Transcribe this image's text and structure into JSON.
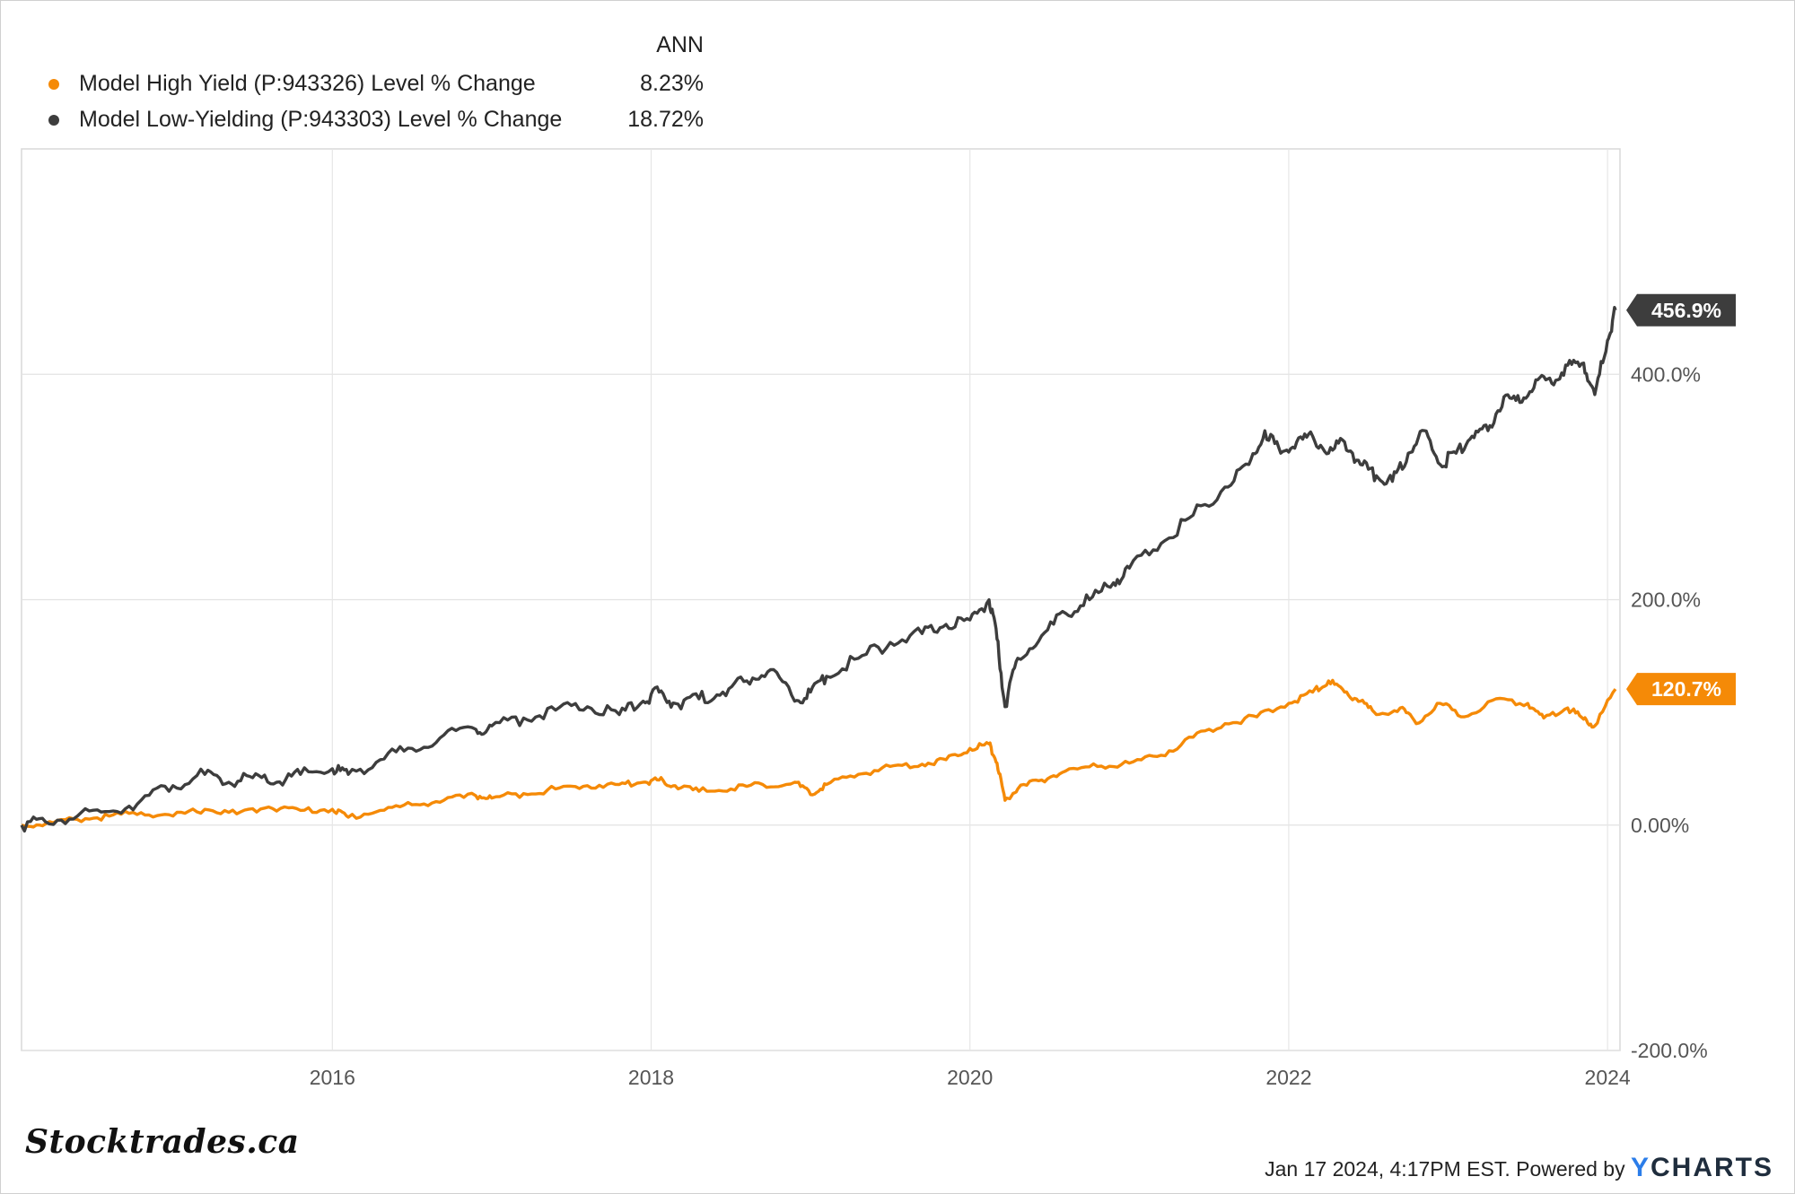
{
  "legend": {
    "column_header": "ANN",
    "items": [
      {
        "name": "Model High Yield (P:943326) Level % Change",
        "value": "8.23%",
        "color": "#f58a07"
      },
      {
        "name": "Model Low-Yielding (P:943303) Level % Change",
        "value": "18.72%",
        "color": "#3d3d3d"
      }
    ]
  },
  "chart_data": {
    "type": "line",
    "title": "",
    "xlabel": "",
    "ylabel": "",
    "x_ticks": [
      "2016",
      "2018",
      "2020",
      "2022",
      "2024"
    ],
    "y_ticks": [
      "400.0%",
      "200.0%",
      "0.00%",
      "-200.0%"
    ],
    "y_tick_values": [
      400,
      200,
      0,
      -200
    ],
    "xlim": [
      2014.05,
      2024.05
    ],
    "ylim": [
      -200,
      600
    ],
    "grid": true,
    "series": [
      {
        "name": "Model High Yield (P:943326) Level % Change",
        "color": "#f58a07",
        "end_label": "120.7%",
        "points": [
          [
            2014.05,
            0
          ],
          [
            2014.2,
            1
          ],
          [
            2014.4,
            5
          ],
          [
            2014.6,
            8
          ],
          [
            2014.8,
            11
          ],
          [
            2015.0,
            8
          ],
          [
            2015.2,
            14
          ],
          [
            2015.4,
            10
          ],
          [
            2015.6,
            16
          ],
          [
            2015.8,
            13
          ],
          [
            2016.0,
            14
          ],
          [
            2016.1,
            7
          ],
          [
            2016.3,
            13
          ],
          [
            2016.5,
            18
          ],
          [
            2016.7,
            22
          ],
          [
            2016.9,
            26
          ],
          [
            2017.0,
            24
          ],
          [
            2017.2,
            28
          ],
          [
            2017.4,
            32
          ],
          [
            2017.6,
            35
          ],
          [
            2017.8,
            36
          ],
          [
            2017.95,
            38
          ],
          [
            2018.05,
            40
          ],
          [
            2018.15,
            35
          ],
          [
            2018.3,
            30
          ],
          [
            2018.5,
            32
          ],
          [
            2018.7,
            36
          ],
          [
            2018.9,
            38
          ],
          [
            2019.0,
            27
          ],
          [
            2019.1,
            36
          ],
          [
            2019.3,
            45
          ],
          [
            2019.5,
            52
          ],
          [
            2019.7,
            54
          ],
          [
            2019.85,
            58
          ],
          [
            2020.0,
            68
          ],
          [
            2020.12,
            72
          ],
          [
            2020.17,
            55
          ],
          [
            2020.22,
            22
          ],
          [
            2020.3,
            32
          ],
          [
            2020.45,
            40
          ],
          [
            2020.6,
            48
          ],
          [
            2020.8,
            52
          ],
          [
            2021.0,
            55
          ],
          [
            2021.2,
            62
          ],
          [
            2021.4,
            78
          ],
          [
            2021.6,
            90
          ],
          [
            2021.8,
            96
          ],
          [
            2022.0,
            108
          ],
          [
            2022.15,
            118
          ],
          [
            2022.25,
            128
          ],
          [
            2022.35,
            118
          ],
          [
            2022.45,
            110
          ],
          [
            2022.55,
            98
          ],
          [
            2022.7,
            104
          ],
          [
            2022.8,
            90
          ],
          [
            2022.95,
            108
          ],
          [
            2023.1,
            96
          ],
          [
            2023.3,
            112
          ],
          [
            2023.5,
            108
          ],
          [
            2023.6,
            95
          ],
          [
            2023.75,
            104
          ],
          [
            2023.85,
            94
          ],
          [
            2023.92,
            88
          ],
          [
            2024.05,
            120.7
          ]
        ]
      },
      {
        "name": "Model Low-Yielding (P:943303) Level % Change",
        "color": "#3d3d3d",
        "end_label": "456.9%",
        "points": [
          [
            2014.05,
            0
          ],
          [
            2014.2,
            3
          ],
          [
            2014.4,
            8
          ],
          [
            2014.6,
            12
          ],
          [
            2014.8,
            22
          ],
          [
            2015.0,
            35
          ],
          [
            2015.2,
            45
          ],
          [
            2015.35,
            38
          ],
          [
            2015.5,
            42
          ],
          [
            2015.65,
            38
          ],
          [
            2015.8,
            45
          ],
          [
            2016.0,
            50
          ],
          [
            2016.1,
            45
          ],
          [
            2016.3,
            58
          ],
          [
            2016.5,
            68
          ],
          [
            2016.7,
            80
          ],
          [
            2016.9,
            85
          ],
          [
            2017.0,
            88
          ],
          [
            2017.2,
            95
          ],
          [
            2017.4,
            102
          ],
          [
            2017.6,
            105
          ],
          [
            2017.8,
            98
          ],
          [
            2017.95,
            110
          ],
          [
            2018.05,
            118
          ],
          [
            2018.15,
            108
          ],
          [
            2018.3,
            112
          ],
          [
            2018.45,
            118
          ],
          [
            2018.6,
            128
          ],
          [
            2018.75,
            138
          ],
          [
            2018.9,
            110
          ],
          [
            2019.0,
            118
          ],
          [
            2019.1,
            132
          ],
          [
            2019.3,
            148
          ],
          [
            2019.5,
            162
          ],
          [
            2019.7,
            170
          ],
          [
            2019.85,
            178
          ],
          [
            2020.0,
            182
          ],
          [
            2020.12,
            200
          ],
          [
            2020.17,
            165
          ],
          [
            2020.22,
            105
          ],
          [
            2020.3,
            148
          ],
          [
            2020.45,
            168
          ],
          [
            2020.6,
            188
          ],
          [
            2020.75,
            200
          ],
          [
            2020.9,
            215
          ],
          [
            2021.0,
            228
          ],
          [
            2021.2,
            250
          ],
          [
            2021.4,
            275
          ],
          [
            2021.6,
            300
          ],
          [
            2021.75,
            320
          ],
          [
            2021.85,
            350
          ],
          [
            2021.95,
            330
          ],
          [
            2022.05,
            340
          ],
          [
            2022.15,
            345
          ],
          [
            2022.25,
            330
          ],
          [
            2022.35,
            340
          ],
          [
            2022.45,
            320
          ],
          [
            2022.55,
            310
          ],
          [
            2022.65,
            305
          ],
          [
            2022.75,
            330
          ],
          [
            2022.85,
            350
          ],
          [
            2022.95,
            320
          ],
          [
            2023.05,
            330
          ],
          [
            2023.15,
            345
          ],
          [
            2023.25,
            350
          ],
          [
            2023.35,
            380
          ],
          [
            2023.45,
            375
          ],
          [
            2023.55,
            395
          ],
          [
            2023.65,
            392
          ],
          [
            2023.75,
            408
          ],
          [
            2023.85,
            410
          ],
          [
            2023.92,
            382
          ],
          [
            2024.0,
            430
          ],
          [
            2024.05,
            456.9
          ]
        ]
      }
    ]
  },
  "branding": {
    "left_logo": "Stocktrades.ca",
    "footer_text": "Jan 17 2024, 4:17PM EST. Powered by",
    "ycharts_y": "Y",
    "ycharts_rest": "CHARTS"
  }
}
